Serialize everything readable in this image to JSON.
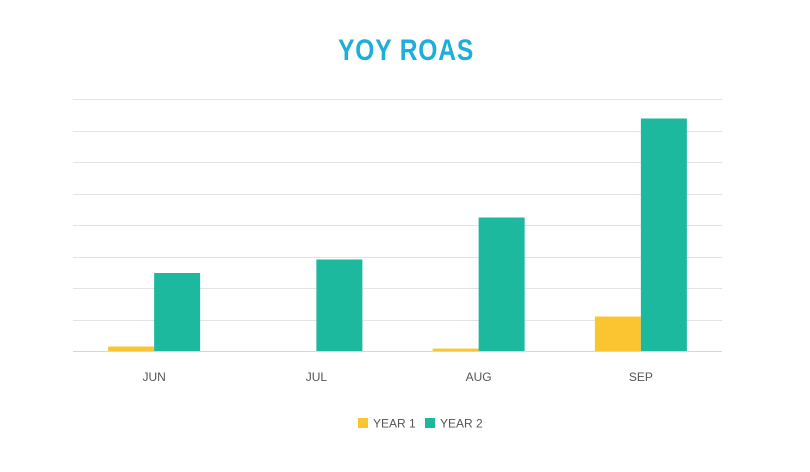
{
  "chart_data": {
    "type": "bar",
    "title": "YOY ROAS",
    "categories": [
      "JUN",
      "JUL",
      "AUG",
      "SEP"
    ],
    "series": [
      {
        "name": "YEAR 1",
        "color": "#FBC531",
        "values": [
          0.15,
          0,
          0.08,
          1.15
        ]
      },
      {
        "name": "YEAR 2",
        "color": "#1DB99F",
        "values": [
          2.6,
          3.05,
          4.45,
          7.75
        ]
      }
    ],
    "ylim": [
      0,
      8.4
    ],
    "y_gridlines": 8,
    "grid": true,
    "y_tick_labels_shown": false,
    "legend": "bottom-center",
    "title_color": "#1DAEDB",
    "grid_color": "#E3E3E3"
  }
}
